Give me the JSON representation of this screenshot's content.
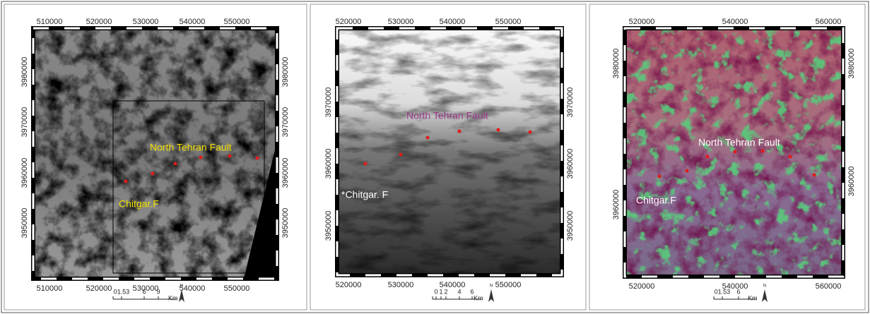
{
  "panels": [
    {
      "top_labels": [
        "510000",
        "520000",
        "530000",
        "540000",
        "550000"
      ],
      "bottom_labels": [
        "510000",
        "520000",
        "530000",
        "540000",
        "550000"
      ],
      "left_labels": [
        "3980000",
        "3970000",
        "3960000",
        "3950000"
      ],
      "right_labels": [
        "3980000",
        "3970000",
        "3960000",
        "3950000"
      ],
      "annotations": [
        "North Tehran Fault",
        "Chitgar.F"
      ],
      "scale_labels": [
        "01.53",
        "6",
        "9"
      ],
      "scale_unit": "Km",
      "north": "N"
    },
    {
      "top_labels": [
        "520000",
        "530000",
        "540000",
        "550000"
      ],
      "bottom_labels": [
        "520000",
        "530000",
        "540000",
        "550000"
      ],
      "left_labels": [
        "3970000",
        "3960000",
        "3950000"
      ],
      "right_labels": [
        "3970000",
        "3960000",
        "3950000"
      ],
      "annotations": [
        "North Tehran Fault",
        "*Chitgar. F"
      ],
      "scale_labels": [
        "0",
        "1",
        "2",
        "4",
        "6"
      ],
      "scale_unit": "Km",
      "north": "N"
    },
    {
      "top_labels": [
        "520000",
        "540000",
        "560000"
      ],
      "bottom_labels": [
        "520000",
        "540000",
        "560000"
      ],
      "left_labels": [
        "3980000",
        "3960000"
      ],
      "right_labels": [
        "3980000",
        "3960000"
      ],
      "annotations": [
        "North Tehran Fault",
        "Chitgar.F"
      ],
      "scale_labels": [
        "01.53",
        "6"
      ],
      "scale_unit": "Km",
      "north": "N"
    }
  ]
}
